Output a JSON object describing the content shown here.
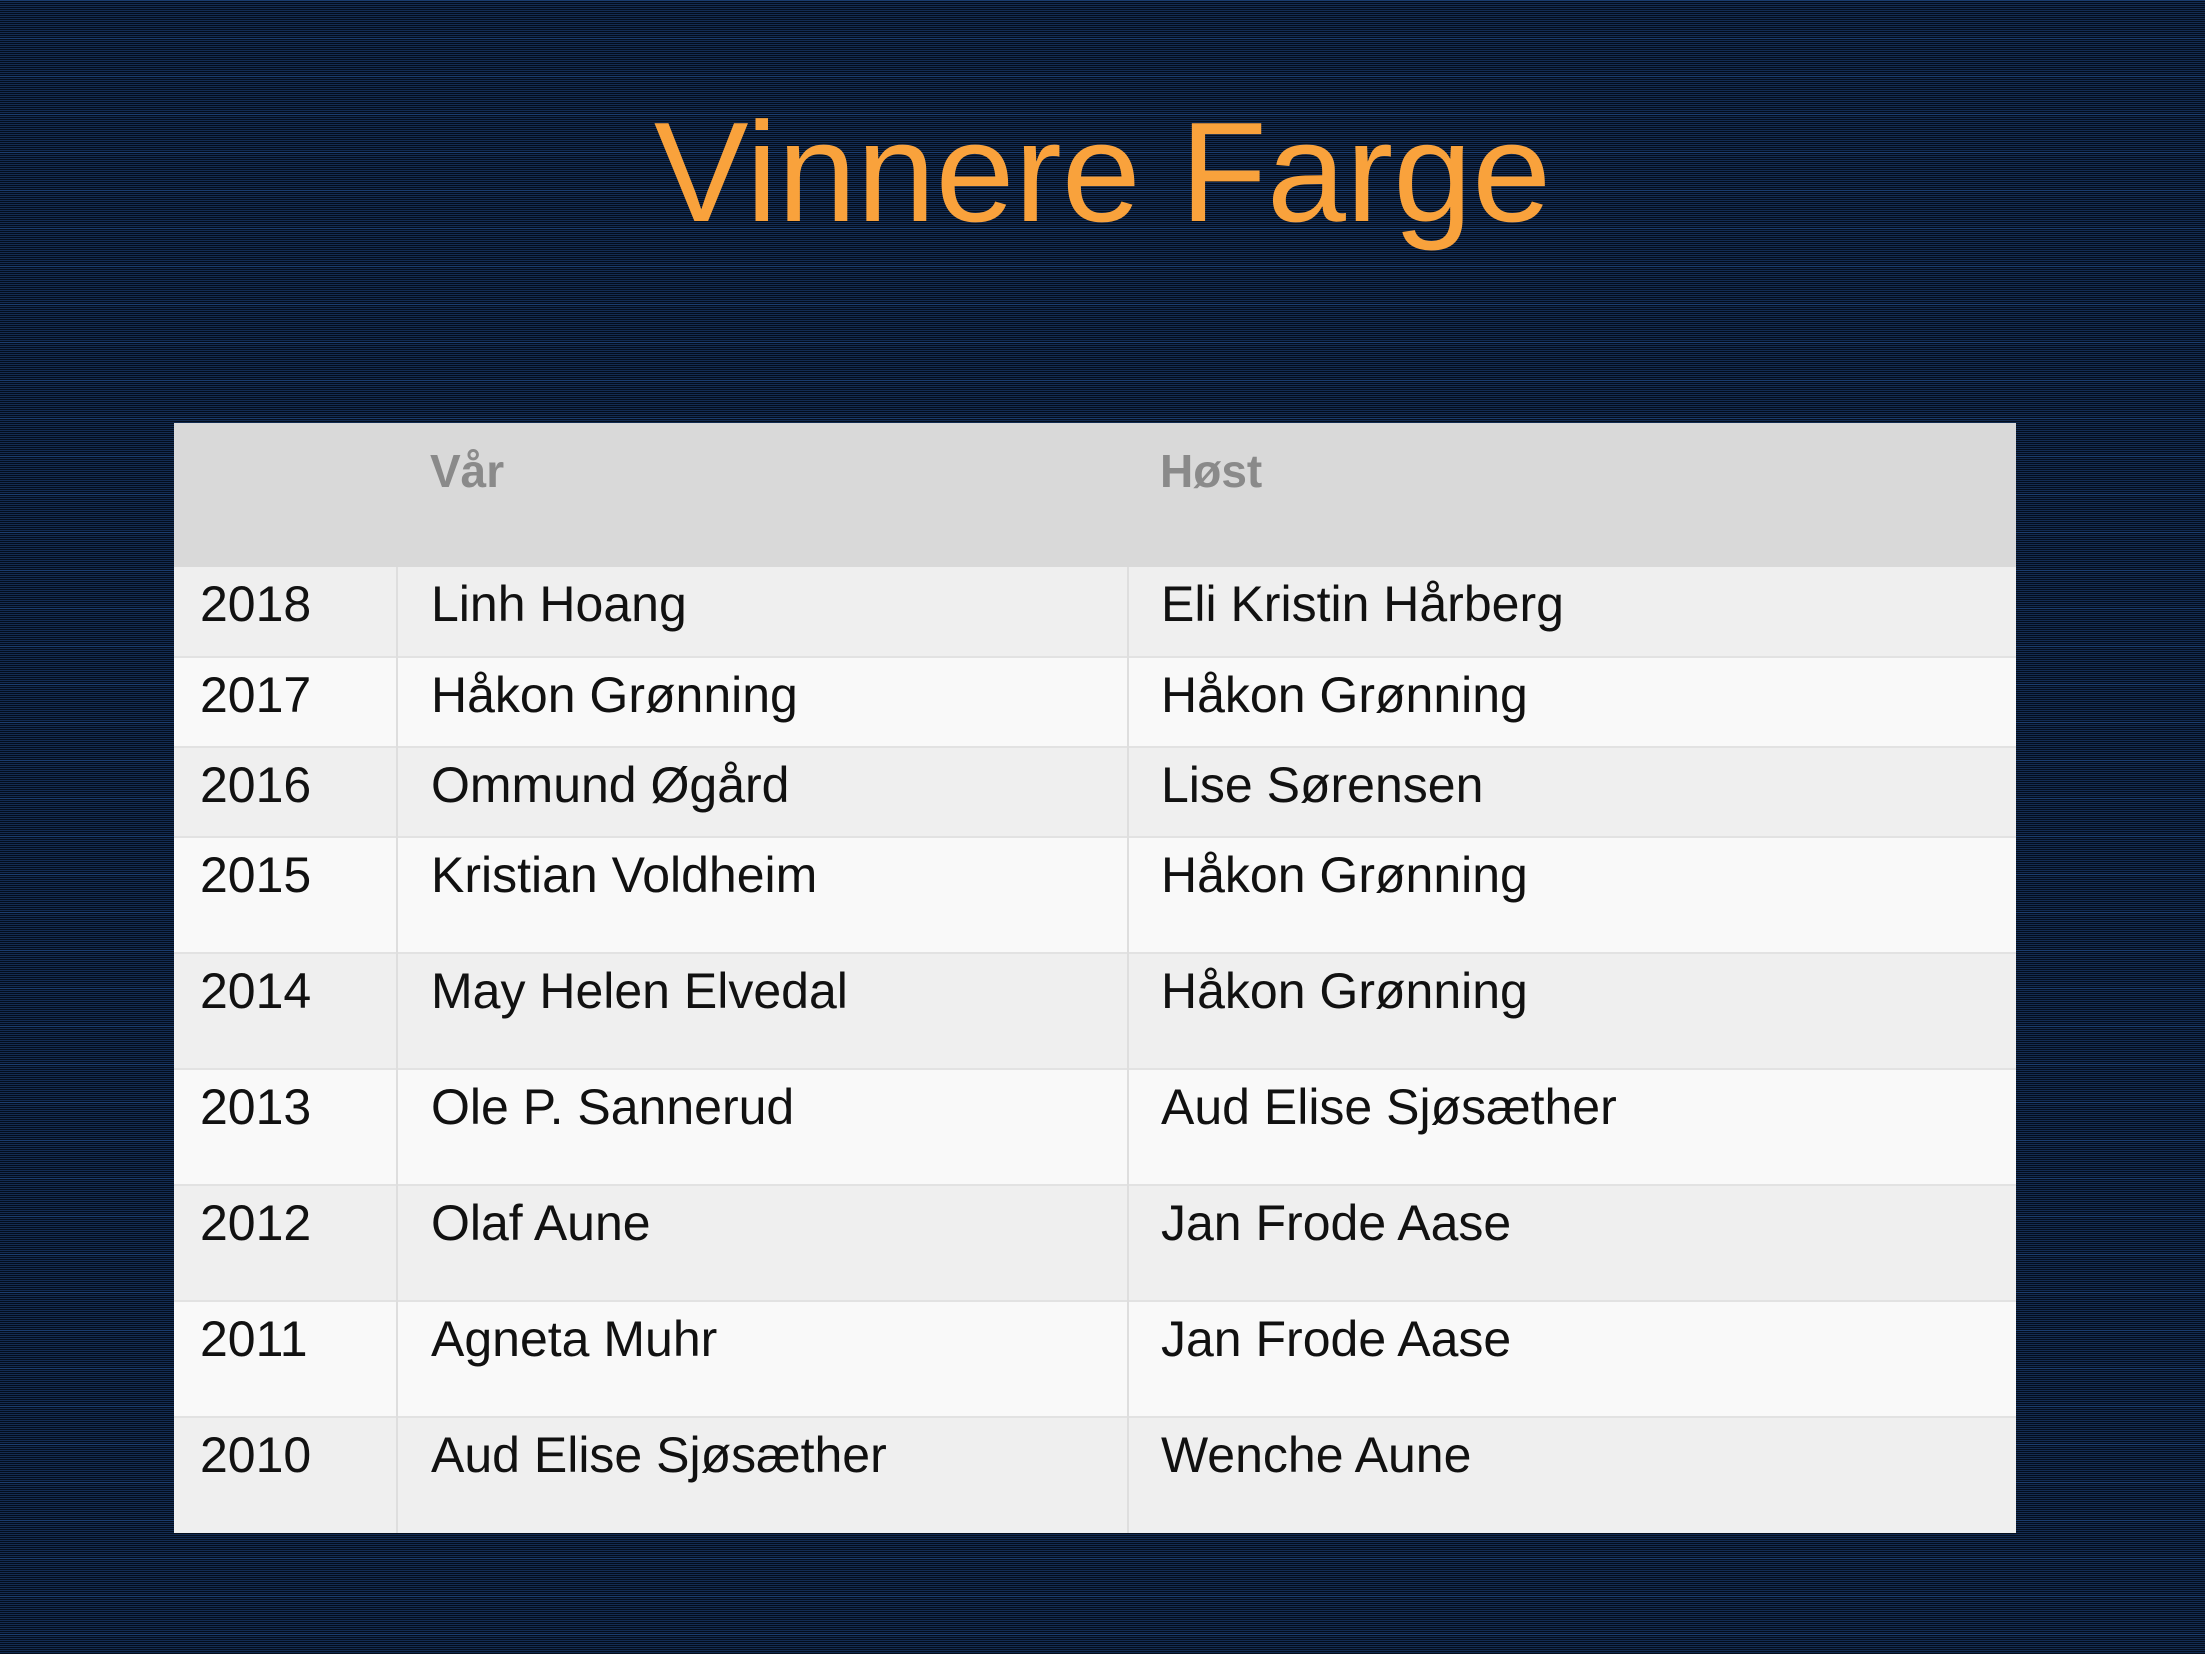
{
  "slide": {
    "title": "Vinnere Farge"
  },
  "table": {
    "header": {
      "year": "",
      "var": "Vår",
      "host": "Høst"
    },
    "rows": [
      {
        "year": "2018",
        "var": "Linh Hoang",
        "host": "Eli Kristin Hårberg"
      },
      {
        "year": "2017",
        "var": "Håkon Grønning",
        "host": "Håkon Grønning"
      },
      {
        "year": "2016",
        "var": "Ommund Øgård",
        "host": "Lise Sørensen"
      },
      {
        "year": "2015",
        "var": "Kristian Voldheim",
        "host": "Håkon Grønning"
      },
      {
        "year": "2014",
        "var": "May Helen Elvedal",
        "host": "Håkon Grønning"
      },
      {
        "year": "2013",
        "var": "Ole P. Sannerud",
        "host": "Aud Elise Sjøsæther"
      },
      {
        "year": "2012",
        "var": "Olaf Aune",
        "host": "Jan Frode Aase"
      },
      {
        "year": "2011",
        "var": "Agneta Muhr",
        "host": "Jan Frode Aase"
      },
      {
        "year": "2010",
        "var": "Aud Elise Sjøsæther",
        "host": "Wenche Aune"
      }
    ]
  },
  "colors": {
    "title": "#F9A23C",
    "background_dark": "#040D1C",
    "background_light": "#132C52",
    "header_bg": "#D9D9D9",
    "header_text": "#8A8A8A",
    "row_even_bg": "#EFEFEF",
    "row_odd_bg": "#F9F9F9",
    "body_text": "#111111"
  }
}
